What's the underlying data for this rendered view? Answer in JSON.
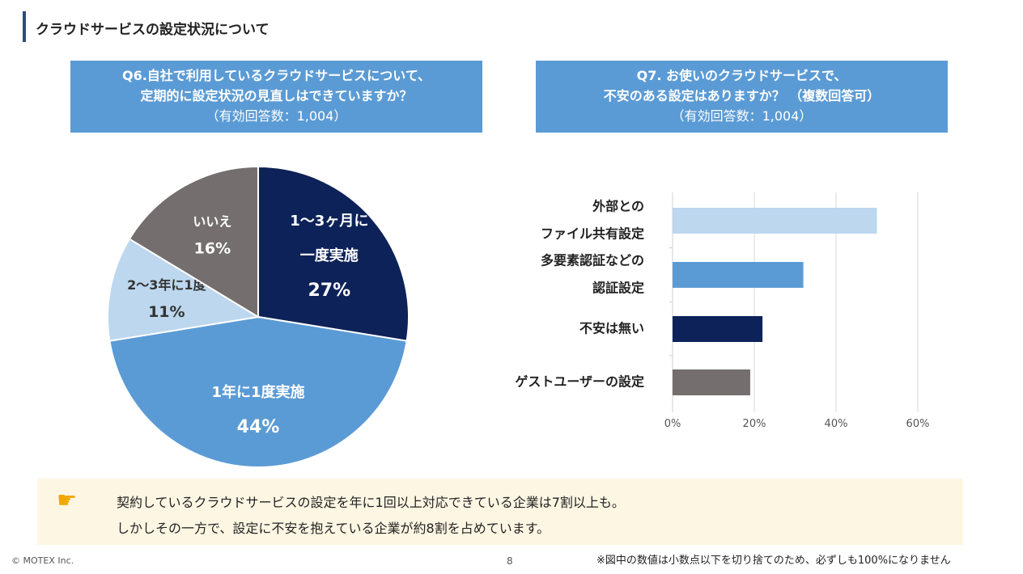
{
  "page_title": "クラウドサービスの設定状況について",
  "q6": {
    "line1": "Q6.自社で利用しているクラウドサービスについて、",
    "line2": "定期的に設定状況の見直しはできていますか？",
    "sub": "（有効回答数：1,004）"
  },
  "q7": {
    "line1": "Q7. お使いのクラウドサービスで、",
    "line2": "不安のある設定はありますか？ （複数回答可）",
    "sub": "（有効回答数：1,004）"
  },
  "chart_data": [
    {
      "type": "pie",
      "slices": [
        {
          "label_lines": [
            "1～3ヶ月に",
            "一度実施"
          ],
          "value": 27,
          "display": "27%",
          "color": "#0d2258",
          "text_color": "#ffffff"
        },
        {
          "label_lines": [
            "1年に1度実施"
          ],
          "value": 44,
          "display": "44%",
          "color": "#5b9bd5",
          "text_color": "#ffffff"
        },
        {
          "label_lines": [
            "2～3年に1度"
          ],
          "value": 11,
          "display": "11%",
          "color": "#bcd7ee",
          "text_color": "#333333"
        },
        {
          "label_lines": [
            "いいえ"
          ],
          "value": 16,
          "display": "16%",
          "color": "#746e6e",
          "text_color": "#ffffff"
        }
      ]
    },
    {
      "type": "bar",
      "orientation": "horizontal",
      "categories": [
        [
          "外部との",
          "ファイル共有設定"
        ],
        [
          "多要素認証などの",
          "認証設定"
        ],
        [
          "不安は無い"
        ],
        [
          "ゲストユーザーの設定"
        ]
      ],
      "values": [
        50,
        32,
        22,
        19
      ],
      "colors": [
        "#bcd7ee",
        "#5b9bd5",
        "#0d2258",
        "#746e6e"
      ],
      "xlim": [
        0,
        60
      ],
      "xticks": [
        "0%",
        "20%",
        "40%",
        "60%"
      ],
      "grid": true
    }
  ],
  "note": {
    "line1": "契約しているクラウドサービスの設定を年に1回以上対応できている企業は7割以上も。",
    "line2": "しかしその一方で、設定に不安を抱えている企業が約8割を占めています。"
  },
  "footer": {
    "copyright": "© MOTEX Inc.",
    "page": "8",
    "disclaimer": "※図中の数値は小数点以下を切り捨てのため、必ずしも100%になりません"
  }
}
